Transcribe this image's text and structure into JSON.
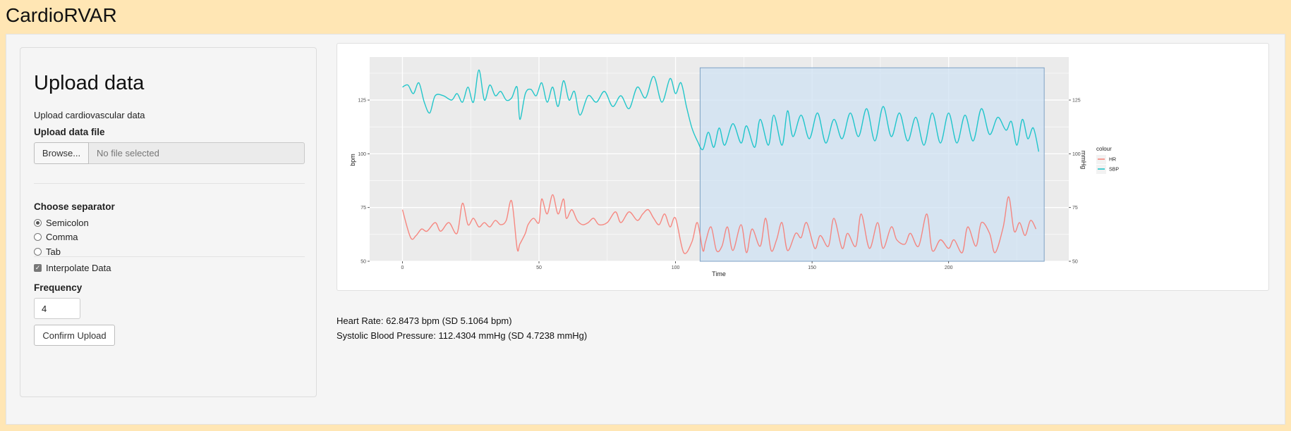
{
  "app": {
    "title": "CardioRVAR"
  },
  "sidebar": {
    "heading": "Upload data",
    "description": "Upload cardiovascular data",
    "upload_label": "Upload data file",
    "browse_label": "Browse...",
    "file_placeholder": "No file selected",
    "separator_label": "Choose separator",
    "separators": [
      {
        "label": "Semicolon",
        "selected": true
      },
      {
        "label": "Comma",
        "selected": false
      },
      {
        "label": "Tab",
        "selected": false
      }
    ],
    "interpolate_label": "Interpolate Data",
    "interpolate_checked": true,
    "frequency_label": "Frequency",
    "frequency_value": "4",
    "confirm_label": "Confirm Upload"
  },
  "stats": {
    "heart_rate": "Heart Rate: 62.8473 bpm (SD 5.1064 bpm)",
    "sbp": "Systolic Blood Pressure: 112.4304 mmHg (SD 4.7238 mmHg)"
  },
  "chart_data": {
    "type": "line",
    "xlabel": "Time",
    "ylabel_left": "bpm",
    "ylabel_right": "mmHg",
    "xlim": [
      -12,
      244
    ],
    "ylim": [
      50,
      145
    ],
    "x_ticks": [
      0,
      50,
      100,
      150,
      200
    ],
    "y_ticks": [
      50,
      75,
      100,
      125
    ],
    "grid": true,
    "legend": {
      "title": "colour",
      "position": "right"
    },
    "selection": {
      "x": [
        109,
        235
      ],
      "y": [
        50,
        140
      ],
      "color": "#cfe2f3"
    },
    "series": [
      {
        "name": "HR",
        "color": "#f8766d",
        "x": [
          0,
          3,
          5,
          7,
          9,
          12,
          14,
          17,
          20,
          22,
          24,
          26,
          28,
          30,
          32,
          34,
          36,
          38,
          40,
          42,
          43,
          45,
          46,
          48,
          50,
          51,
          53,
          55,
          57,
          59,
          60,
          62,
          64,
          66,
          68,
          70,
          72,
          75,
          78,
          80,
          83,
          86,
          88,
          90,
          92,
          94,
          96,
          98,
          100,
          103,
          106,
          108,
          110,
          111,
          113,
          115,
          117,
          119,
          121,
          124,
          126,
          128,
          131,
          133,
          135,
          137,
          139,
          141,
          144,
          146,
          148,
          151,
          153,
          156,
          158,
          161,
          163,
          166,
          168,
          171,
          174,
          176,
          179,
          181,
          184,
          186,
          189,
          192,
          194,
          197,
          200,
          202,
          205,
          207,
          210,
          212,
          215,
          217,
          220,
          222,
          224,
          226,
          228,
          230,
          232
        ],
        "values": [
          74,
          61,
          62,
          65,
          64,
          68,
          64,
          68,
          63,
          77,
          67,
          70,
          66,
          68,
          66,
          69,
          67,
          69,
          78,
          56,
          58,
          63,
          67,
          70,
          68,
          79,
          72,
          81,
          72,
          79,
          70,
          74,
          69,
          67,
          68,
          70,
          67,
          68,
          73,
          68,
          73,
          69,
          72,
          74,
          70,
          67,
          72,
          66,
          70,
          54,
          59,
          68,
          55,
          59,
          66,
          55,
          57,
          66,
          55,
          67,
          54,
          65,
          57,
          70,
          55,
          60,
          68,
          55,
          63,
          61,
          68,
          56,
          62,
          57,
          70,
          56,
          63,
          57,
          72,
          56,
          68,
          56,
          66,
          60,
          58,
          63,
          57,
          72,
          55,
          60,
          56,
          60,
          54,
          66,
          57,
          68,
          63,
          54,
          66,
          80,
          64,
          68,
          62,
          69,
          65
        ]
      },
      {
        "name": "SBP",
        "color": "#00bfc4",
        "x": [
          0,
          2,
          4,
          6,
          8,
          10,
          12,
          15,
          18,
          20,
          22,
          24,
          26,
          28,
          30,
          32,
          34,
          36,
          38,
          40,
          42,
          43,
          45,
          47,
          49,
          51,
          53,
          55,
          57,
          59,
          61,
          63,
          65,
          68,
          71,
          74,
          77,
          80,
          83,
          86,
          89,
          92,
          95,
          98,
          100,
          102,
          104,
          106,
          108,
          110,
          112,
          114,
          116,
          118,
          121,
          124,
          126,
          129,
          131,
          134,
          136,
          139,
          141,
          143,
          146,
          149,
          152,
          155,
          158,
          161,
          164,
          167,
          170,
          173,
          176,
          179,
          182,
          185,
          188,
          191,
          194,
          197,
          200,
          203,
          206,
          209,
          212,
          215,
          218,
          221,
          223,
          225,
          227,
          229,
          231,
          233
        ],
        "values": [
          131,
          132,
          128,
          133,
          124,
          119,
          127,
          127,
          125,
          128,
          124,
          131,
          124,
          139,
          125,
          132,
          127,
          129,
          125,
          126,
          131,
          116,
          128,
          130,
          127,
          133,
          124,
          131,
          122,
          134,
          125,
          129,
          118,
          127,
          124,
          129,
          122,
          127,
          121,
          131,
          126,
          136,
          124,
          135,
          128,
          133,
          122,
          112,
          106,
          102,
          110,
          103,
          112,
          104,
          114,
          105,
          113,
          103,
          116,
          104,
          118,
          104,
          120,
          108,
          118,
          107,
          119,
          105,
          116,
          107,
          119,
          108,
          121,
          106,
          122,
          108,
          119,
          106,
          117,
          104,
          119,
          105,
          119,
          105,
          118,
          106,
          121,
          109,
          117,
          111,
          115,
          104,
          116,
          107,
          112,
          101
        ]
      }
    ]
  }
}
